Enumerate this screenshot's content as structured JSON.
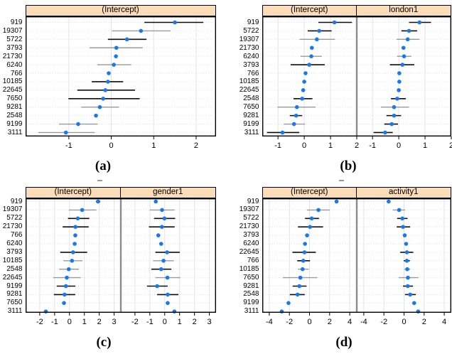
{
  "figure": {
    "colors": {
      "dot": "#1779f2",
      "header_bg": "#fbdcb9",
      "ci_dark": "#0d0d0d",
      "ci_light": "#999999",
      "grid": "#e3e3e3",
      "divider": "#8a8a8a",
      "border": "#000000",
      "tick": "#000000",
      "background": "#ffffff",
      "artifact": "#9a9a9a"
    },
    "point_format": "[estimate, ci_low, ci_high, ci_style(dark|light|none)]"
  },
  "chart_data": [
    {
      "type": "scatter",
      "caption": "(a)",
      "columns": [
        "(Intercept)"
      ],
      "categories": [
        "919",
        "19307",
        "5722",
        "3793",
        "21730",
        "6240",
        "766",
        "10185",
        "22645",
        "7650",
        "9281",
        "2548",
        "9199",
        "3111"
      ],
      "x_ticks": [
        -1,
        0,
        1,
        2
      ],
      "xlim": [
        -2.02,
        2.47
      ],
      "grid": true,
      "legend": "none",
      "series": [
        {
          "name": "(Intercept)",
          "points": [
            [
              1.5,
              0.78,
              2.17,
              "dark"
            ],
            [
              0.7,
              0.02,
              1.4,
              "light"
            ],
            [
              0.37,
              -0.08,
              0.83,
              "dark"
            ],
            [
              0.12,
              -0.51,
              0.74,
              "light"
            ],
            [
              0.11,
              0.11,
              0.11,
              "none"
            ],
            [
              0.06,
              -0.33,
              0.47,
              "light"
            ],
            [
              -0.06,
              -0.06,
              -0.06,
              "none"
            ],
            [
              -0.08,
              -0.46,
              0.28,
              "dark"
            ],
            [
              -0.14,
              -0.8,
              0.56,
              "dark"
            ],
            [
              -0.19,
              -1.01,
              0.67,
              "dark"
            ],
            [
              -0.27,
              -0.71,
              0.18,
              "light"
            ],
            [
              -0.36,
              -0.36,
              -0.36,
              "none"
            ],
            [
              -0.78,
              -1.23,
              -0.32,
              "light"
            ],
            [
              -1.07,
              -1.72,
              -0.39,
              "light"
            ]
          ]
        }
      ]
    },
    {
      "type": "scatter",
      "caption": "(b)",
      "columns": [
        "(Intercept)",
        "london1"
      ],
      "categories": [
        "919",
        "5722",
        "19307",
        "21730",
        "6240",
        "3793",
        "766",
        "10185",
        "22645",
        "2548",
        "7650",
        "9281",
        "9199",
        "3111"
      ],
      "x_ticks": [
        -1,
        0,
        1,
        2
      ],
      "xlim": [
        -1.6,
        2.0
      ],
      "grid": true,
      "legend": "none",
      "series": [
        {
          "name": "(Intercept)",
          "points": [
            [
              1.15,
              0.54,
              1.82,
              "dark"
            ],
            [
              0.57,
              0.13,
              1.04,
              "dark"
            ],
            [
              0.48,
              -0.18,
              1.17,
              "light"
            ],
            [
              0.29,
              0.29,
              0.29,
              "none"
            ],
            [
              0.27,
              -0.14,
              0.67,
              "light"
            ],
            [
              0.19,
              -0.52,
              0.78,
              "dark"
            ],
            [
              0.05,
              0.05,
              0.05,
              "none"
            ],
            [
              0.0,
              0.0,
              0.0,
              "none"
            ],
            [
              -0.04,
              -0.04,
              -0.04,
              "none"
            ],
            [
              -0.08,
              -0.41,
              0.31,
              "dark"
            ],
            [
              -0.28,
              -1.02,
              0.43,
              "light"
            ],
            [
              -0.31,
              -0.55,
              -0.08,
              "dark"
            ],
            [
              -0.39,
              -0.78,
              0.03,
              "light"
            ],
            [
              -0.83,
              -1.42,
              -0.19,
              "dark"
            ]
          ]
        },
        {
          "name": "london1",
          "points": [
            [
              0.79,
              0.39,
              1.23,
              "dark"
            ],
            [
              0.39,
              0.1,
              0.7,
              "dark"
            ],
            [
              0.34,
              -0.09,
              0.79,
              "light"
            ],
            [
              0.18,
              0.18,
              0.18,
              "none"
            ],
            [
              0.2,
              -0.07,
              0.48,
              "light"
            ],
            [
              0.14,
              -0.34,
              0.59,
              "dark"
            ],
            [
              0.02,
              0.02,
              0.02,
              "none"
            ],
            [
              0.02,
              0.02,
              0.02,
              "none"
            ],
            [
              0.0,
              0.0,
              0.0,
              "none"
            ],
            [
              -0.06,
              -0.3,
              0.27,
              "dark"
            ],
            [
              -0.18,
              -0.68,
              0.39,
              "light"
            ],
            [
              -0.18,
              -0.47,
              0.09,
              "dark"
            ],
            [
              -0.27,
              -0.55,
              -0.03,
              "dark"
            ],
            [
              -0.52,
              -0.96,
              -0.23,
              "dark"
            ]
          ]
        }
      ]
    },
    {
      "type": "scatter",
      "caption": "(c)",
      "columns": [
        "(Intercept)",
        "gender1"
      ],
      "categories": [
        "919",
        "19307",
        "5722",
        "21730",
        "766",
        "6240",
        "3793",
        "10185",
        "2548",
        "22645",
        "9199",
        "9281",
        "7650",
        "3111"
      ],
      "x_ticks": [
        -2,
        -1,
        0,
        1,
        2,
        3
      ],
      "xlim": [
        -2.95,
        3.45
      ],
      "grid": true,
      "legend": "none",
      "series": [
        {
          "name": "(Intercept)",
          "points": [
            [
              1.92,
              1.78,
              2.07,
              "dark"
            ],
            [
              0.85,
              -0.05,
              1.81,
              "light"
            ],
            [
              0.56,
              -0.1,
              1.33,
              "dark"
            ],
            [
              0.4,
              -0.46,
              1.29,
              "dark"
            ],
            [
              0.39,
              0.39,
              0.39,
              "none"
            ],
            [
              0.35,
              0.35,
              0.35,
              "none"
            ],
            [
              0.24,
              -0.62,
              1.19,
              "dark"
            ],
            [
              0.17,
              -0.41,
              0.87,
              "light"
            ],
            [
              -0.05,
              -0.7,
              0.63,
              "light"
            ],
            [
              -0.18,
              -1.1,
              0.76,
              "light"
            ],
            [
              -0.24,
              -0.86,
              0.4,
              "dark"
            ],
            [
              -0.33,
              -1.05,
              0.39,
              "dark"
            ],
            [
              -0.37,
              -0.37,
              -0.37,
              "none"
            ],
            [
              -1.59,
              -1.59,
              -1.59,
              "none"
            ]
          ]
        },
        {
          "name": "gender1",
          "points": [
            [
              -0.6,
              -0.6,
              -0.6,
              "none"
            ],
            [
              -0.18,
              -1.0,
              0.67,
              "light"
            ],
            [
              -0.02,
              -0.72,
              0.7,
              "dark"
            ],
            [
              -0.19,
              -1.06,
              0.67,
              "dark"
            ],
            [
              -0.43,
              -0.43,
              -0.43,
              "none"
            ],
            [
              -0.24,
              -0.24,
              -0.24,
              "none"
            ],
            [
              0.16,
              -0.63,
              1.01,
              "dark"
            ],
            [
              -0.08,
              -0.78,
              0.62,
              "light"
            ],
            [
              -0.24,
              -0.9,
              0.44,
              "dark"
            ],
            [
              0.18,
              -0.63,
              1.05,
              "light"
            ],
            [
              -0.51,
              -1.19,
              0.2,
              "dark"
            ],
            [
              0.2,
              -0.51,
              0.92,
              "dark"
            ],
            [
              0.2,
              0.2,
              0.2,
              "none"
            ],
            [
              0.65,
              0.65,
              0.65,
              "none"
            ]
          ]
        }
      ]
    },
    {
      "type": "scatter",
      "caption": "(d)",
      "columns": [
        "(Intercept)",
        "activity1"
      ],
      "categories": [
        "919",
        "19307",
        "5722",
        "21730",
        "3793",
        "6240",
        "22645",
        "766",
        "10185",
        "7650",
        "9281",
        "2548",
        "9199",
        "3111"
      ],
      "x_ticks": [
        -4,
        -2,
        0,
        2,
        4
      ],
      "xlim": [
        -4.7,
        4.7
      ],
      "grid": true,
      "legend": "none",
      "series": [
        {
          "name": "(Intercept)",
          "points": [
            [
              2.69,
              2.69,
              2.69,
              "none"
            ],
            [
              0.89,
              -0.26,
              2.01,
              "light"
            ],
            [
              0.22,
              -0.45,
              0.94,
              "dark"
            ],
            [
              0.05,
              -1.15,
              1.35,
              "dark"
            ],
            [
              -0.24,
              -0.24,
              -0.24,
              "none"
            ],
            [
              -0.45,
              -0.45,
              -0.45,
              "none"
            ],
            [
              -0.5,
              -1.7,
              0.63,
              "dark"
            ],
            [
              -0.62,
              -1.22,
              0.05,
              "dark"
            ],
            [
              -0.69,
              -1.15,
              -0.09,
              "light"
            ],
            [
              -0.91,
              -2.66,
              0.77,
              "light"
            ],
            [
              -1.01,
              -1.68,
              -0.29,
              "dark"
            ],
            [
              -1.19,
              -1.96,
              -0.47,
              "dark"
            ],
            [
              -2.09,
              -2.09,
              -2.09,
              "none"
            ],
            [
              -2.76,
              -2.76,
              -2.76,
              "none"
            ]
          ]
        },
        {
          "name": "activity1",
          "points": [
            [
              -1.53,
              -1.53,
              -1.53,
              "none"
            ],
            [
              -0.49,
              -1.13,
              0.11,
              "light"
            ],
            [
              -0.17,
              -0.68,
              0.35,
              "dark"
            ],
            [
              -0.1,
              -0.73,
              0.61,
              "dark"
            ],
            [
              0.07,
              0.07,
              0.07,
              "none"
            ],
            [
              0.21,
              0.21,
              0.21,
              "none"
            ],
            [
              0.28,
              -0.38,
              0.92,
              "dark"
            ],
            [
              0.28,
              -0.03,
              0.58,
              "dark"
            ],
            [
              0.32,
              0.02,
              0.62,
              "light"
            ],
            [
              0.39,
              -0.54,
              1.43,
              "light"
            ],
            [
              0.37,
              -0.1,
              0.89,
              "dark"
            ],
            [
              0.61,
              0.09,
              1.17,
              "dark"
            ],
            [
              1.01,
              1.01,
              1.01,
              "none"
            ],
            [
              1.41,
              1.41,
              1.41,
              "none"
            ]
          ]
        }
      ]
    }
  ]
}
